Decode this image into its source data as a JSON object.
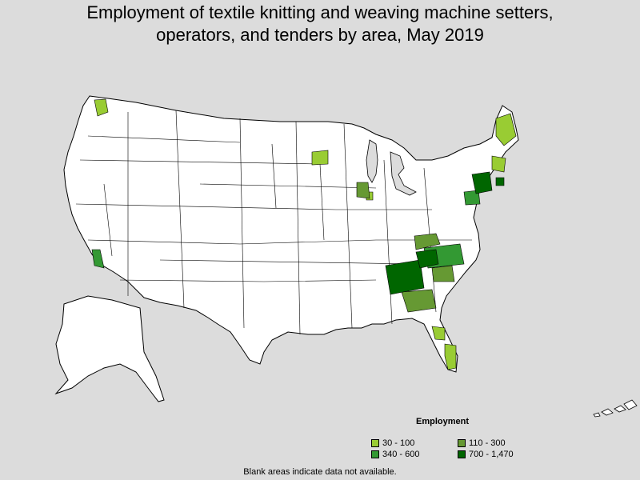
{
  "title": {
    "line1": "Employment of textile knitting and weaving machine setters,",
    "line2": "operators, and tenders by area, May 2019"
  },
  "legend": {
    "title": "Employment",
    "items": [
      {
        "label": "30 - 100",
        "color": "#99cc33"
      },
      {
        "label": "110 - 300",
        "color": "#669933"
      },
      {
        "label": "340 - 600",
        "color": "#339933"
      },
      {
        "label": "700 - 1,470",
        "color": "#006600"
      }
    ]
  },
  "note": "Blank areas indicate data not available.",
  "colors": {
    "background": "#dcdcdc",
    "land": "#ffffff",
    "border": "#000000"
  }
}
